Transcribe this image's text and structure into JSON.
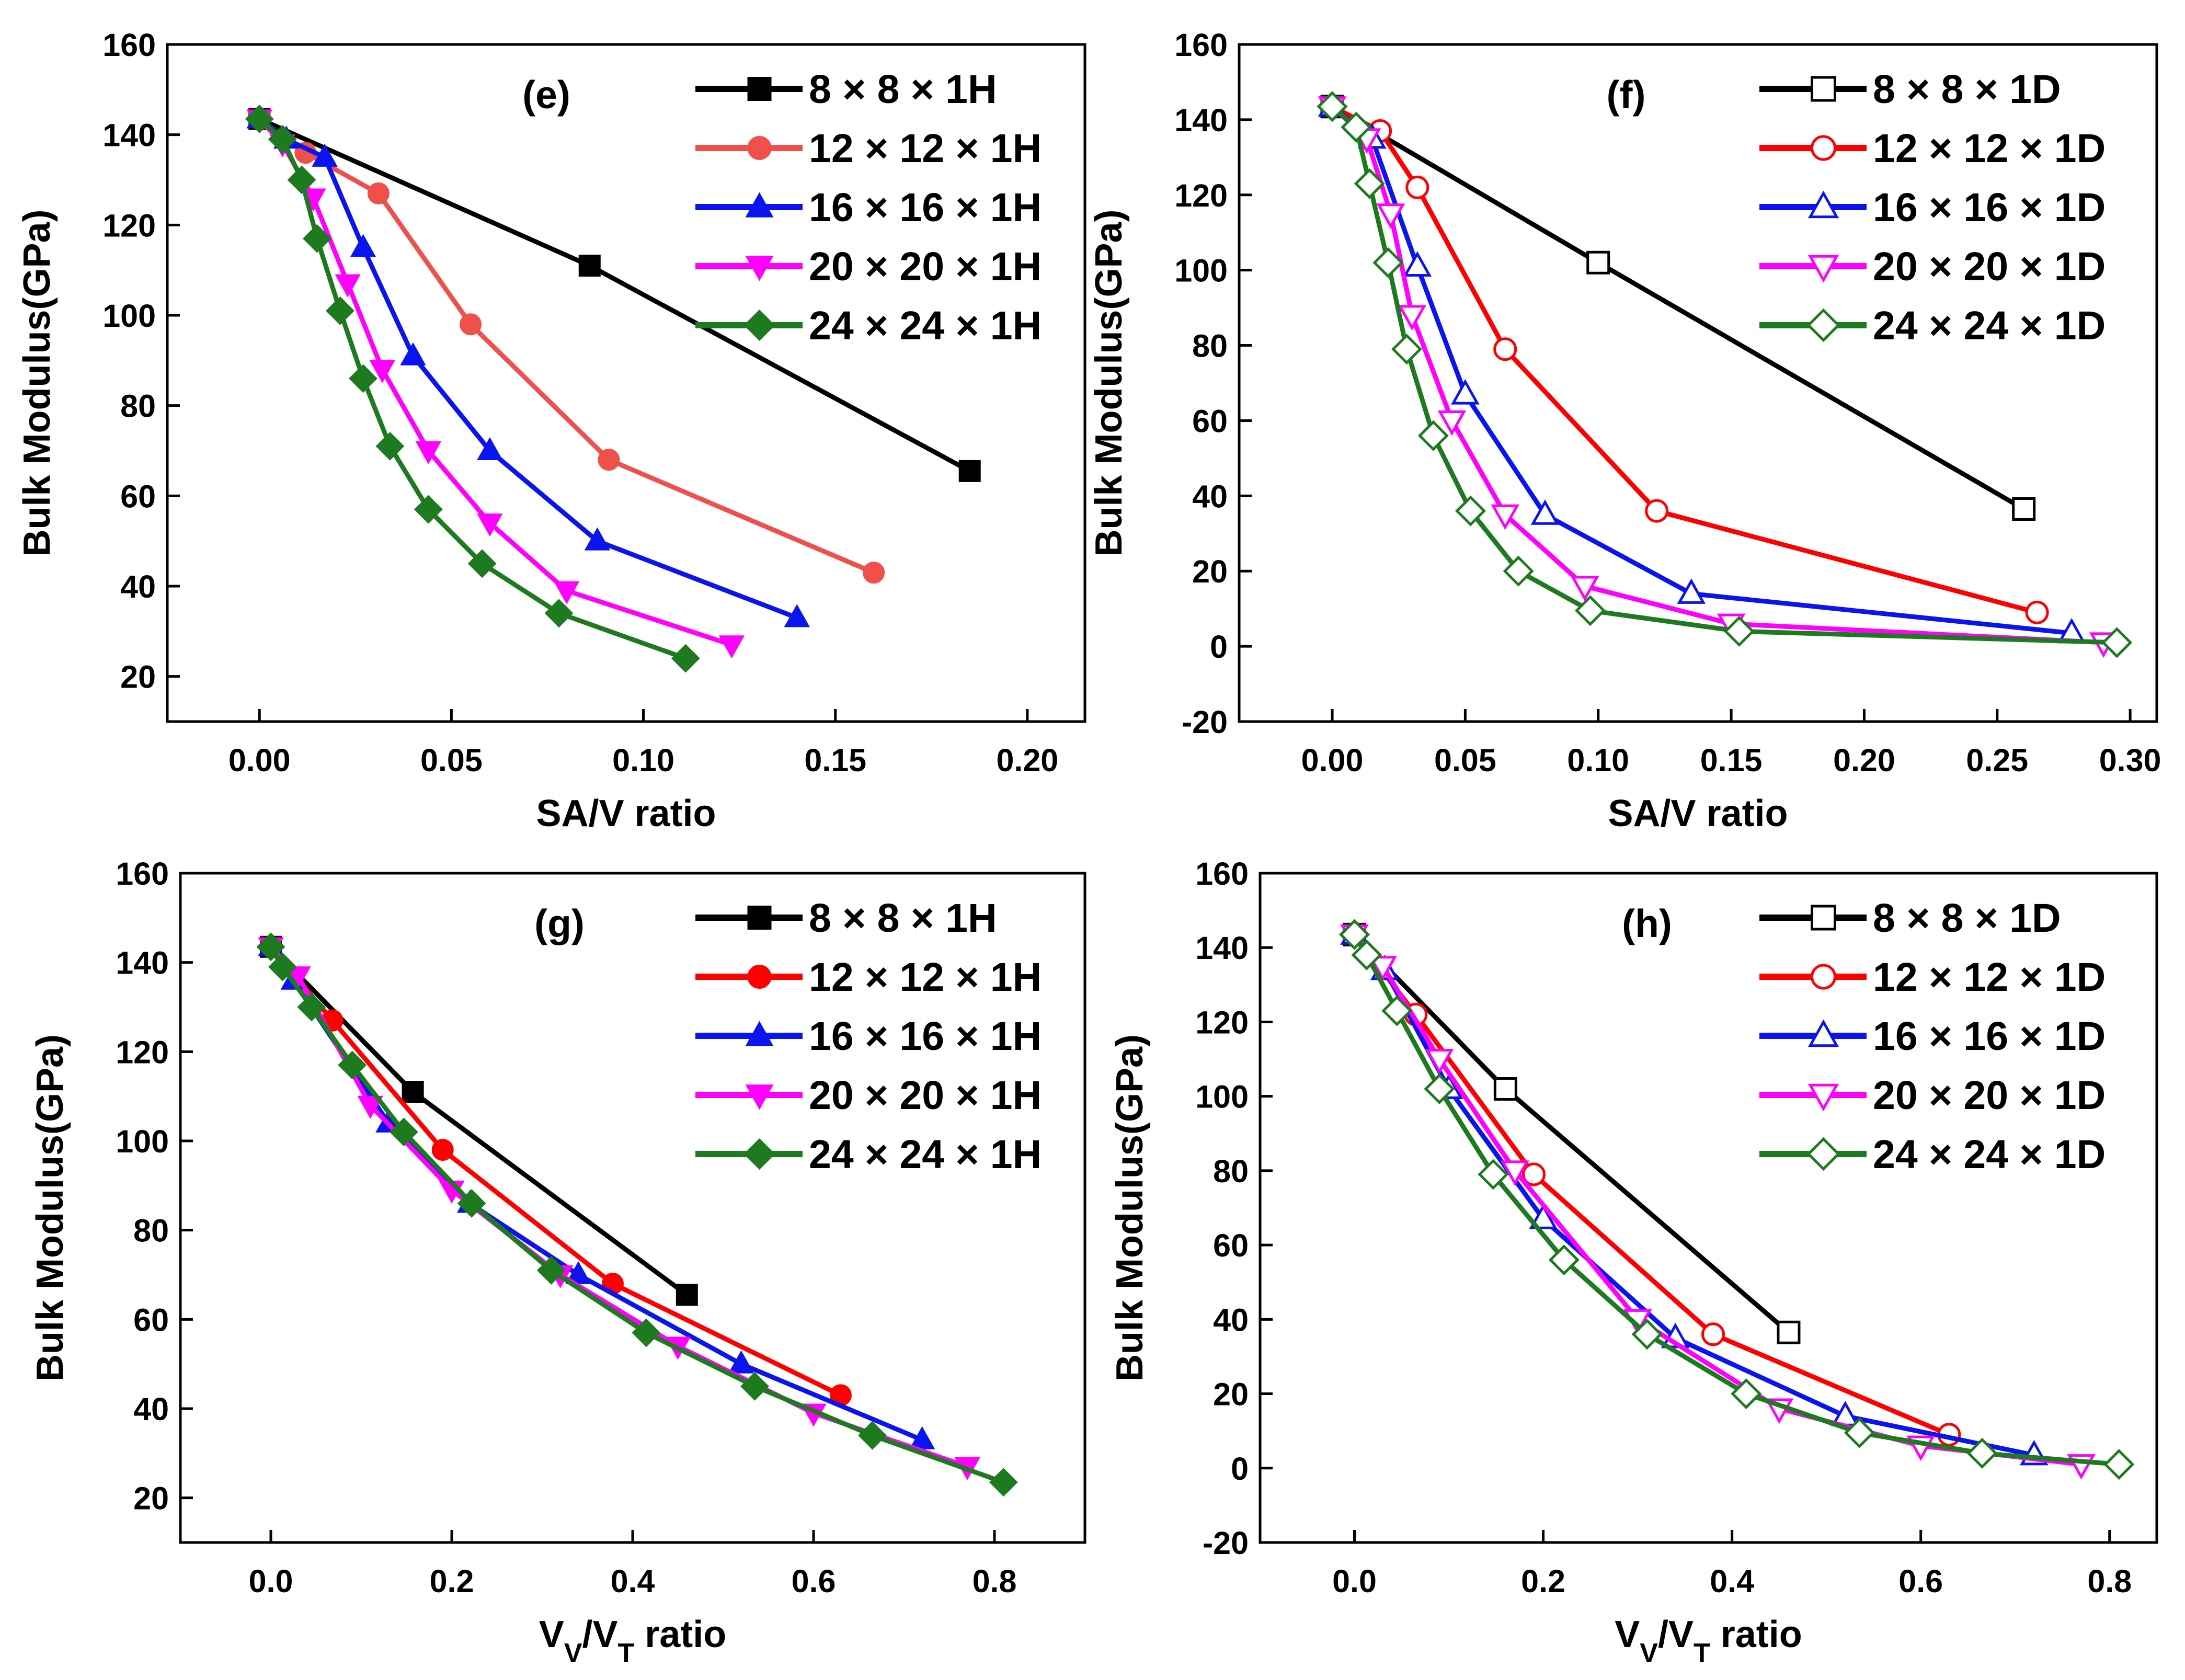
{
  "chart_data": [
    {
      "type": "line",
      "panel_label": "(e)",
      "xlabel": "SA/V ratio",
      "ylabel": "Bulk Modulus(GPa)",
      "xlim": [
        -0.024,
        0.215
      ],
      "ylim": [
        10,
        160
      ],
      "xticks": [
        "0.00",
        "0.05",
        "0.10",
        "0.15",
        "0.20"
      ],
      "yticks": [
        "20",
        "40",
        "60",
        "80",
        "100",
        "120",
        "140",
        "160"
      ],
      "marker_fill": "filled",
      "legend_position": "top-right",
      "series": [
        {
          "name": "8 × 8 × 1H",
          "color": "#000000",
          "marker": "square",
          "x": [
            0,
            0.086,
            0.185
          ],
          "y": [
            143.5,
            111,
            65.5
          ]
        },
        {
          "name": "12 × 12 × 1H",
          "color": "#f0504a",
          "marker": "circle",
          "x": [
            0,
            0.012,
            0.031,
            0.055,
            0.091,
            0.16
          ],
          "y": [
            143.5,
            136,
            127,
            98,
            68,
            43
          ]
        },
        {
          "name": "16 × 16 × 1H",
          "color": "#0a14ee",
          "marker": "triangle-up",
          "x": [
            0,
            0.007,
            0.017,
            0.027,
            0.04,
            0.06,
            0.088,
            0.14
          ],
          "y": [
            143.5,
            139,
            135,
            115,
            91,
            70,
            50,
            33
          ]
        },
        {
          "name": "20 × 20 × 1H",
          "color": "#ff00ff",
          "marker": "triangle-down",
          "x": [
            0,
            0.006,
            0.014,
            0.023,
            0.032,
            0.044,
            0.06,
            0.08,
            0.123
          ],
          "y": [
            143.5,
            138,
            126,
            107,
            88,
            70,
            54,
            39,
            27
          ]
        },
        {
          "name": "24 × 24 × 1H",
          "color": "#1e7a1e",
          "marker": "diamond",
          "x": [
            0,
            0.006,
            0.011,
            0.015,
            0.021,
            0.027,
            0.034,
            0.044,
            0.058,
            0.078,
            0.111
          ],
          "y": [
            143.5,
            139,
            130,
            117,
            101,
            86,
            71,
            57,
            45,
            34,
            24
          ]
        }
      ]
    },
    {
      "type": "line",
      "panel_label": "(f)",
      "xlabel": "SA/V ratio",
      "ylabel": "Bulk Modulus(GPa)",
      "xlim": [
        -0.035,
        0.31
      ],
      "ylim": [
        -20,
        160
      ],
      "xticks": [
        "0.00",
        "0.05",
        "0.10",
        "0.15",
        "0.20",
        "0.25",
        "0.30"
      ],
      "yticks": [
        "-20",
        "0",
        "20",
        "40",
        "60",
        "80",
        "100",
        "120",
        "140",
        "160"
      ],
      "marker_fill": "open",
      "legend_position": "top-right",
      "series": [
        {
          "name": "8 × 8 × 1D",
          "color": "#000000",
          "marker": "square",
          "x": [
            0,
            0.1,
            0.26
          ],
          "y": [
            143.5,
            102,
            36.5
          ]
        },
        {
          "name": "12 × 12 × 1D",
          "color": "#ff0000",
          "marker": "circle",
          "x": [
            0,
            0.018,
            0.032,
            0.065,
            0.122,
            0.265
          ],
          "y": [
            143.5,
            137,
            122,
            79,
            36,
            9
          ]
        },
        {
          "name": "16 × 16 × 1D",
          "color": "#0a14ee",
          "marker": "triangle-up",
          "x": [
            0,
            0.015,
            0.032,
            0.05,
            0.08,
            0.135,
            0.278
          ],
          "y": [
            143.5,
            135,
            101,
            67,
            35,
            14,
            3.5
          ]
        },
        {
          "name": "20 × 20 × 1D",
          "color": "#ff00ff",
          "marker": "triangle-down",
          "x": [
            0,
            0.013,
            0.022,
            0.03,
            0.045,
            0.065,
            0.095,
            0.15,
            0.29
          ],
          "y": [
            143.5,
            135,
            115,
            88,
            60,
            35,
            16,
            6,
            1
          ]
        },
        {
          "name": "24 × 24 × 1D",
          "color": "#1e7a1e",
          "marker": "diamond",
          "x": [
            0,
            0.009,
            0.014,
            0.021,
            0.028,
            0.038,
            0.052,
            0.07,
            0.097,
            0.153,
            0.295
          ],
          "y": [
            143.5,
            138,
            123,
            102,
            79,
            56,
            36,
            20,
            9.5,
            4,
            1
          ]
        }
      ]
    },
    {
      "type": "line",
      "panel_label": "(g)",
      "xlabel": "V_V/V_T ratio",
      "ylabel": "Bulk Modulus(GPa)",
      "xlim": [
        -0.1,
        0.9
      ],
      "ylim": [
        10,
        160
      ],
      "xticks": [
        "0.0",
        "0.2",
        "0.4",
        "0.6",
        "0.8"
      ],
      "yticks": [
        "20",
        "40",
        "60",
        "80",
        "100",
        "120",
        "140",
        "160"
      ],
      "marker_fill": "filled",
      "legend_position": "top-right",
      "series": [
        {
          "name": "8 × 8 × 1H",
          "color": "#000000",
          "marker": "square",
          "x": [
            0,
            0.157,
            0.46
          ],
          "y": [
            143.5,
            111,
            65.5
          ]
        },
        {
          "name": "12 × 12 × 1H",
          "color": "#ff0000",
          "marker": "circle",
          "x": [
            0,
            0.068,
            0.19,
            0.378,
            0.63
          ],
          "y": [
            143.5,
            127,
            98,
            68,
            43
          ]
        },
        {
          "name": "16 × 16 × 1H",
          "color": "#0a14ee",
          "marker": "triangle-up",
          "x": [
            0,
            0.025,
            0.13,
            0.22,
            0.34,
            0.52,
            0.72
          ],
          "y": [
            143.5,
            136,
            104,
            86,
            70,
            50,
            33
          ]
        },
        {
          "name": "20 × 20 × 1H",
          "color": "#ff00ff",
          "marker": "triangle-down",
          "x": [
            0,
            0.03,
            0.11,
            0.2,
            0.32,
            0.45,
            0.6,
            0.77
          ],
          "y": [
            143.5,
            137,
            108,
            89,
            70,
            54,
            39,
            27
          ]
        },
        {
          "name": "24 × 24 × 1H",
          "color": "#1e7a1e",
          "marker": "diamond",
          "x": [
            0,
            0.013,
            0.045,
            0.09,
            0.147,
            0.222,
            0.31,
            0.415,
            0.535,
            0.665,
            0.81
          ],
          "y": [
            143.5,
            139,
            130,
            117,
            102,
            86,
            71,
            57,
            45,
            34,
            23.5
          ]
        }
      ]
    },
    {
      "type": "line",
      "panel_label": "(h)",
      "xlabel": "V_V/V_T ratio",
      "ylabel": "Bulk Modulus(GPa)",
      "xlim": [
        -0.1,
        0.85
      ],
      "ylim": [
        -20,
        160
      ],
      "xticks": [
        "0.0",
        "0.2",
        "0.4",
        "0.6",
        "0.8"
      ],
      "yticks": [
        "-20",
        "0",
        "20",
        "40",
        "60",
        "80",
        "100",
        "120",
        "140",
        "160"
      ],
      "marker_fill": "open",
      "legend_position": "top-right",
      "series": [
        {
          "name": "8 × 8 × 1D",
          "color": "#000000",
          "marker": "square",
          "x": [
            0,
            0.16,
            0.46
          ],
          "y": [
            143.5,
            102,
            36.5
          ]
        },
        {
          "name": "12 × 12 × 1D",
          "color": "#ff0000",
          "marker": "circle",
          "x": [
            0,
            0.065,
            0.19,
            0.38,
            0.63
          ],
          "y": [
            143.5,
            122,
            79,
            36,
            9
          ]
        },
        {
          "name": "16 × 16 × 1D",
          "color": "#0a14ee",
          "marker": "triangle-up",
          "x": [
            0,
            0.032,
            0.1,
            0.2,
            0.34,
            0.52,
            0.72
          ],
          "y": [
            143.5,
            134,
            102,
            67,
            35,
            14,
            3.5
          ]
        },
        {
          "name": "20 × 20 × 1D",
          "color": "#ff00ff",
          "marker": "triangle-down",
          "x": [
            0,
            0.03,
            0.09,
            0.17,
            0.3,
            0.45,
            0.6,
            0.77
          ],
          "y": [
            143.5,
            135,
            110,
            80,
            40,
            16,
            6,
            1
          ]
        },
        {
          "name": "24 × 24 × 1D",
          "color": "#1e7a1e",
          "marker": "diamond",
          "x": [
            0,
            0.013,
            0.045,
            0.09,
            0.147,
            0.222,
            0.31,
            0.415,
            0.535,
            0.665,
            0.81
          ],
          "y": [
            143.5,
            138,
            123,
            102,
            79,
            56,
            36,
            20,
            9.5,
            4,
            1
          ]
        }
      ]
    }
  ]
}
